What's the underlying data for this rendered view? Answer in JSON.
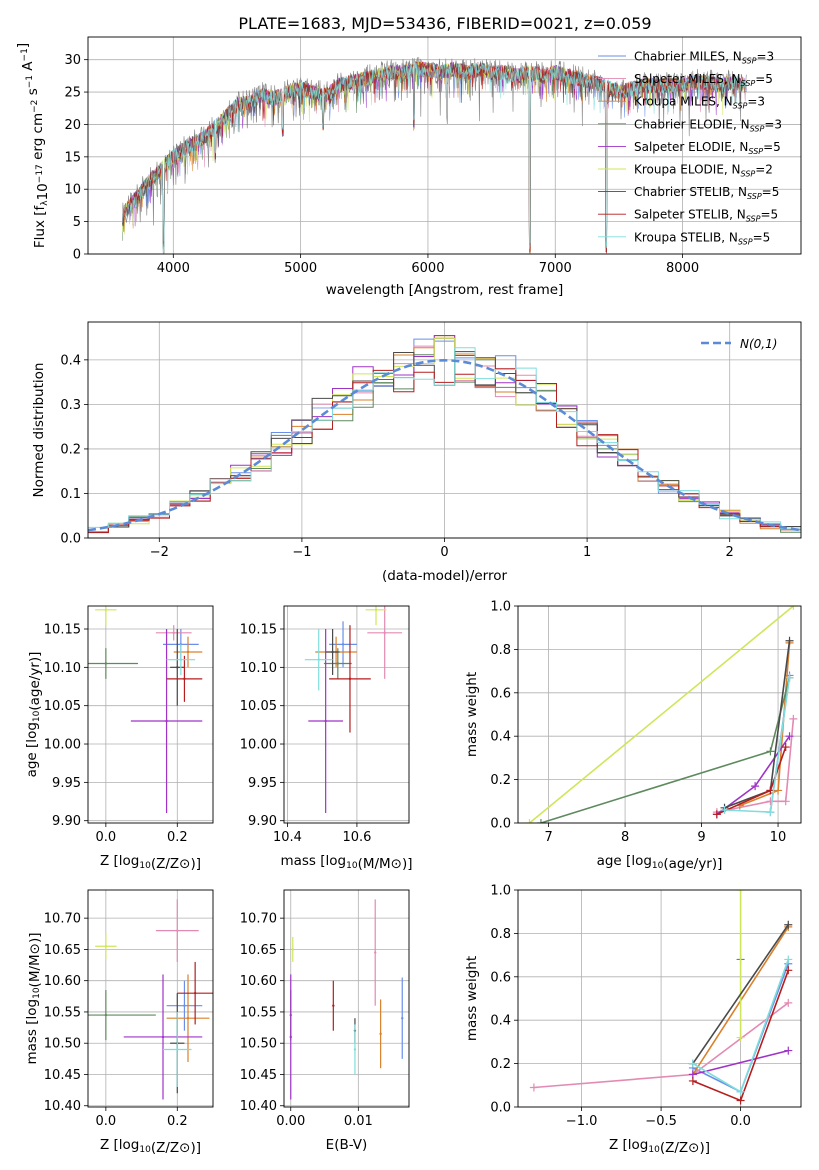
{
  "title": "PLATE=1683, MJD=53436, FIBERID=0021, z=0.059",
  "models": [
    {
      "name": "Chabrier MILES",
      "nssp": "3",
      "color": "#6a8fe8"
    },
    {
      "name": "Salpeter MILES",
      "nssp": "5",
      "color": "#e38ab3"
    },
    {
      "name": "Kroupa MILES",
      "nssp": "3",
      "color": "#d9802b"
    },
    {
      "name": "Chabrier ELODIE",
      "nssp": "3",
      "color": "#5e8a5e"
    },
    {
      "name": "Salpeter ELODIE",
      "nssp": "5",
      "color": "#9f33c8"
    },
    {
      "name": "Kroupa ELODIE",
      "nssp": "2",
      "color": "#cfe65a"
    },
    {
      "name": "Chabrier STELIB",
      "nssp": "5",
      "color": "#4a4a4a"
    },
    {
      "name": "Salpeter STELIB",
      "nssp": "5",
      "color": "#b51e1e"
    },
    {
      "name": "Kroupa STELIB",
      "nssp": "5",
      "color": "#7fdddd"
    }
  ],
  "chart_data": [
    {
      "id": "spectrum",
      "type": "line",
      "xlabel": "wavelength [Angstrom, rest frame]",
      "ylabel": "Flux [f_λ10^-17 erg cm^-2 s^-1 A^-1]",
      "xlim": [
        3330,
        8930
      ],
      "ylim": [
        0,
        33.5
      ],
      "xticks": [
        4000,
        5000,
        6000,
        7000,
        8000
      ],
      "yticks": [
        0,
        5,
        10,
        15,
        20,
        25,
        30
      ],
      "data_color": "#808080",
      "continuum": [
        [
          3600,
          6
        ],
        [
          3700,
          8.5
        ],
        [
          3800,
          11
        ],
        [
          3900,
          13
        ],
        [
          4000,
          15
        ],
        [
          4100,
          16.5
        ],
        [
          4200,
          17.5
        ],
        [
          4300,
          19
        ],
        [
          4400,
          21
        ],
        [
          4500,
          23
        ],
        [
          4600,
          23.5
        ],
        [
          4700,
          24.5
        ],
        [
          4800,
          24
        ],
        [
          4900,
          25
        ],
        [
          5000,
          25.5
        ],
        [
          5100,
          25
        ],
        [
          5200,
          24.5
        ],
        [
          5300,
          26
        ],
        [
          5400,
          26.5
        ],
        [
          5500,
          27
        ],
        [
          5600,
          27.5
        ],
        [
          5700,
          28
        ],
        [
          5800,
          28
        ],
        [
          5900,
          28.5
        ],
        [
          6000,
          28.5
        ],
        [
          6100,
          28
        ],
        [
          6200,
          28.5
        ],
        [
          6300,
          28
        ],
        [
          6400,
          28.5
        ],
        [
          6500,
          28
        ],
        [
          6600,
          28
        ],
        [
          6700,
          27.5
        ],
        [
          6800,
          28
        ],
        [
          6900,
          27.5
        ],
        [
          7000,
          28
        ],
        [
          7100,
          27.5
        ],
        [
          7200,
          27
        ],
        [
          7300,
          26.5
        ],
        [
          7400,
          26
        ],
        [
          7500,
          25
        ],
        [
          7600,
          25.5
        ],
        [
          7700,
          26
        ],
        [
          7800,
          26
        ],
        [
          7900,
          26
        ],
        [
          8000,
          26
        ],
        [
          8100,
          26.5
        ],
        [
          8200,
          26.5
        ],
        [
          8300,
          26
        ],
        [
          8400,
          26.5
        ],
        [
          8500,
          26
        ]
      ],
      "dips": [
        [
          3925,
          0
        ],
        [
          4330,
          14
        ],
        [
          4860,
          18
        ],
        [
          5175,
          19
        ],
        [
          5890,
          19
        ],
        [
          6800,
          0
        ],
        [
          7400,
          0
        ]
      ],
      "legend": "upper right"
    },
    {
      "id": "residuals",
      "type": "line",
      "xlabel": "(data-model)/error",
      "ylabel": "Normed distribution",
      "xlim": [
        -2.5,
        2.5
      ],
      "ylim": [
        0,
        0.485
      ],
      "xticks": [
        -2,
        -1,
        0,
        1,
        2
      ],
      "yticks": [
        0,
        0.1,
        0.2,
        0.3,
        0.4
      ],
      "bin_edges": [
        -2.5,
        2.5
      ],
      "normal_label": "N(0,1)",
      "normal_color": "#5b8bd6",
      "legend": "upper right"
    },
    {
      "id": "age_vs_Z",
      "type": "scatter",
      "xlabel": "Z [log10(Z/Z⊙)]",
      "ylabel": "age  [log10(age/yr)]",
      "xlim": [
        -0.05,
        0.3
      ],
      "ylim": [
        9.897,
        10.18
      ],
      "xticks": [
        0.0,
        0.2
      ],
      "yticks": [
        9.9,
        9.95,
        10.0,
        10.05,
        10.1,
        10.15
      ],
      "points": [
        {
          "x": 0.21,
          "y": 10.13,
          "xerr": 0.05,
          "yerr": 0.02
        },
        {
          "x": 0.19,
          "y": 10.145,
          "xerr": 0.05,
          "yerr": 0.01
        },
        {
          "x": 0.23,
          "y": 10.12,
          "xerr": 0.04,
          "yerr": 0.02
        },
        {
          "x": 0.0,
          "y": 10.105,
          "xerr": 0.09,
          "yerr": 0.02
        },
        {
          "x": 0.17,
          "y": 10.03,
          "xerr": 0.1,
          "yerr": 0.12
        },
        {
          "x": 0.0,
          "y": 10.175,
          "xerr": 0.03,
          "yerr": 0.02
        },
        {
          "x": 0.2,
          "y": 10.1,
          "xerr": 0.02,
          "yerr": 0.05
        },
        {
          "x": 0.22,
          "y": 10.085,
          "xerr": 0.05,
          "yerr": 0.03
        },
        {
          "x": 0.21,
          "y": 10.11,
          "xerr": 0.04,
          "yerr": 0.02
        }
      ]
    },
    {
      "id": "age_vs_mass",
      "type": "scatter",
      "xlabel": "mass [log10(M/M⊙)]",
      "ylabel": "",
      "xlim": [
        10.39,
        10.75
      ],
      "ylim": [
        9.897,
        10.18
      ],
      "xticks": [
        10.4,
        10.6
      ],
      "yticks": [
        9.9,
        9.95,
        10.0,
        10.05,
        10.1,
        10.15
      ],
      "points": [
        {
          "x": 10.56,
          "y": 10.13,
          "xerr": 0.04,
          "yerr": 0.03
        },
        {
          "x": 10.68,
          "y": 10.145,
          "xerr": 0.05,
          "yerr": 0.06
        },
        {
          "x": 10.54,
          "y": 10.12,
          "xerr": 0.06,
          "yerr": 0.02
        },
        {
          "x": 10.545,
          "y": 10.105,
          "xerr": 0.04,
          "yerr": 0.02
        },
        {
          "x": 10.51,
          "y": 10.03,
          "xerr": 0.05,
          "yerr": 0.12
        },
        {
          "x": 10.655,
          "y": 10.175,
          "xerr": 0.03,
          "yerr": 0.02
        },
        {
          "x": 10.53,
          "y": 10.12,
          "xerr": 0.02,
          "yerr": 0.03
        },
        {
          "x": 10.58,
          "y": 10.085,
          "xerr": 0.06,
          "yerr": 0.07
        },
        {
          "x": 10.49,
          "y": 10.11,
          "xerr": 0.04,
          "yerr": 0.04
        }
      ]
    },
    {
      "id": "weight_vs_age",
      "type": "line",
      "xlabel": "age  [log10(age/yr)]",
      "ylabel": "mass weight",
      "xlim": [
        6.6,
        10.3
      ],
      "ylim": [
        0,
        1
      ],
      "xticks": [
        7,
        8,
        9,
        10
      ],
      "yticks": [
        0,
        0.2,
        0.4,
        0.6,
        0.8,
        1.0
      ],
      "series": [
        {
          "points": [
            [
              9.9,
              0.05
            ],
            [
              10.15,
              0.68
            ]
          ]
        },
        {
          "points": [
            [
              9.2,
              0.05
            ],
            [
              9.9,
              0.1
            ],
            [
              10.1,
              0.1
            ],
            [
              10.2,
              0.48
            ]
          ]
        },
        {
          "points": [
            [
              9.5,
              0.08
            ],
            [
              10.0,
              0.15
            ],
            [
              10.15,
              0.83
            ]
          ]
        },
        {
          "points": [
            [
              6.9,
              0.0
            ],
            [
              9.9,
              0.33
            ],
            [
              10.15,
              0.67
            ]
          ]
        },
        {
          "points": [
            [
              9.2,
              0.04
            ],
            [
              9.7,
              0.17
            ],
            [
              10.15,
              0.4
            ]
          ]
        },
        {
          "points": [
            [
              6.75,
              0.0
            ],
            [
              10.2,
              1.0
            ]
          ]
        },
        {
          "points": [
            [
              9.3,
              0.07
            ],
            [
              9.9,
              0.15
            ],
            [
              10.15,
              0.84
            ]
          ]
        },
        {
          "points": [
            [
              9.2,
              0.04
            ],
            [
              9.9,
              0.15
            ],
            [
              10.1,
              0.35
            ]
          ]
        },
        {
          "points": [
            [
              9.3,
              0.06
            ],
            [
              9.9,
              0.05
            ],
            [
              10.15,
              0.67
            ]
          ]
        }
      ]
    },
    {
      "id": "mass_vs_Z",
      "type": "scatter",
      "xlabel": "Z [log10(Z/Z⊙)]",
      "ylabel": "mass [log10(M/M⊙)]",
      "xlim": [
        -0.05,
        0.3
      ],
      "ylim": [
        10.398,
        10.745
      ],
      "xticks": [
        0.0,
        0.2
      ],
      "yticks": [
        10.4,
        10.45,
        10.5,
        10.55,
        10.6,
        10.65,
        10.7
      ],
      "points": [
        {
          "x": 0.22,
          "y": 10.56,
          "xerr": 0.05,
          "yerr": 0.04
        },
        {
          "x": 0.2,
          "y": 10.68,
          "xerr": 0.06,
          "yerr": 0.05
        },
        {
          "x": 0.23,
          "y": 10.54,
          "xerr": 0.06,
          "yerr": 0.07
        },
        {
          "x": 0.0,
          "y": 10.545,
          "xerr": 0.14,
          "yerr": 0.04
        },
        {
          "x": 0.16,
          "y": 10.51,
          "xerr": 0.11,
          "yerr": 0.1
        },
        {
          "x": 0.0,
          "y": 10.655,
          "xerr": 0.03,
          "yerr": 0.02
        },
        {
          "x": 0.2,
          "y": 10.5,
          "xerr": 0.02,
          "yerr": 0.08
        },
        {
          "x": 0.25,
          "y": 10.58,
          "xerr": 0.05,
          "yerr": 0.05
        },
        {
          "x": 0.2,
          "y": 10.49,
          "xerr": 0.04,
          "yerr": 0.06
        }
      ]
    },
    {
      "id": "mass_vs_EBV",
      "type": "scatter",
      "xlabel": "E(B-V)",
      "ylabel": "",
      "xlim": [
        -0.001,
        0.0175
      ],
      "ylim": [
        10.398,
        10.745
      ],
      "xticks": [
        0.0,
        0.01
      ],
      "yticks": [
        10.4,
        10.45,
        10.5,
        10.55,
        10.6,
        10.65,
        10.7
      ],
      "points": [
        {
          "x": 0.0165,
          "y": 10.54,
          "yerr": 0.065
        },
        {
          "x": 0.0125,
          "y": 10.645,
          "yerr": 0.085
        },
        {
          "x": 0.0133,
          "y": 10.515,
          "yerr": 0.055
        },
        {
          "x": 0.0,
          "y": 10.545,
          "yerr": 0.04
        },
        {
          "x": 0.0,
          "y": 10.51,
          "yerr": 0.1
        },
        {
          "x": 0.0003,
          "y": 10.65,
          "yerr": 0.02
        },
        {
          "x": 0.0095,
          "y": 10.52,
          "yerr": 0.02
        },
        {
          "x": 0.0063,
          "y": 10.56,
          "yerr": 0.04
        },
        {
          "x": 0.0095,
          "y": 10.49,
          "yerr": 0.04
        }
      ]
    },
    {
      "id": "weight_vs_Z",
      "type": "line",
      "xlabel": "Z [log10(Z/Z⊙)]",
      "ylabel": "mass weight",
      "xlim": [
        -1.4,
        0.38
      ],
      "ylim": [
        0,
        1
      ],
      "xticks": [
        -1.0,
        -0.5,
        0.0
      ],
      "yticks": [
        0,
        0.2,
        0.4,
        0.6,
        0.8,
        1.0
      ],
      "series": [
        {
          "points": [
            [
              -0.3,
              0.18
            ],
            [
              0.0,
              0.07
            ],
            [
              0.3,
              0.66
            ]
          ]
        },
        {
          "points": [
            [
              -1.3,
              0.09
            ],
            [
              -0.3,
              0.15
            ],
            [
              0.3,
              0.48
            ]
          ]
        },
        {
          "points": [
            [
              -0.3,
              0.15
            ],
            [
              0.3,
              0.83
            ]
          ]
        },
        {
          "points": [
            [
              0.0,
              0.68
            ]
          ]
        },
        {
          "points": [
            [
              -0.3,
              0.15
            ],
            [
              0.3,
              0.26
            ]
          ]
        },
        {
          "points": [
            [
              0.0,
              0.32
            ],
            [
              0.0,
              1.0
            ]
          ]
        },
        {
          "points": [
            [
              -0.3,
              0.2
            ],
            [
              0.3,
              0.84
            ]
          ]
        },
        {
          "points": [
            [
              -0.3,
              0.12
            ],
            [
              0.0,
              0.03
            ],
            [
              0.3,
              0.63
            ]
          ]
        },
        {
          "points": [
            [
              -0.3,
              0.2
            ],
            [
              0.0,
              0.07
            ],
            [
              0.3,
              0.68
            ]
          ]
        }
      ]
    }
  ]
}
